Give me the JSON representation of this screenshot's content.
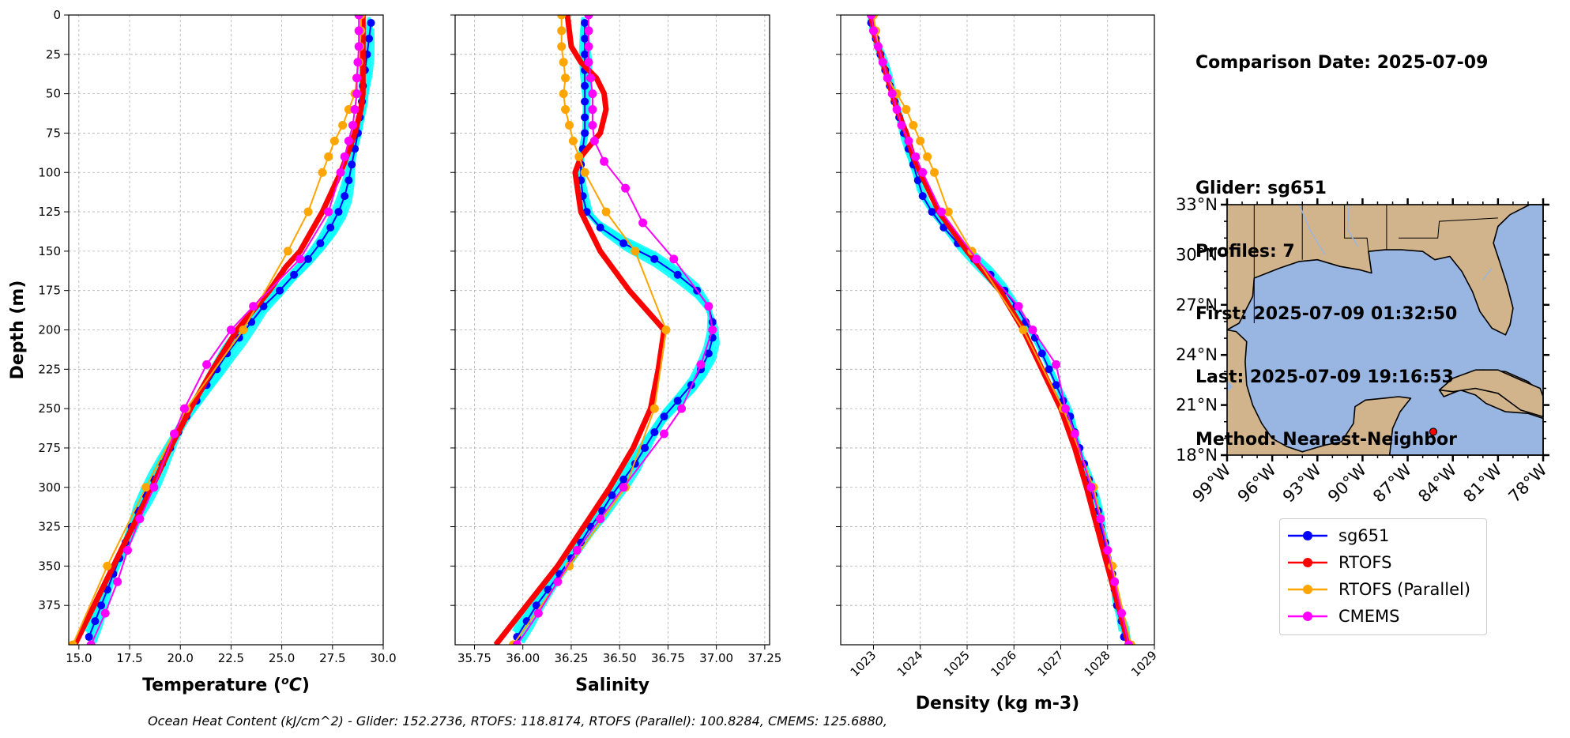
{
  "info": {
    "comparison_date": "Comparison Date: 2025-07-09",
    "glider": "Glider: sg651",
    "profiles": "Profiles: 7",
    "first": "First: 2025-07-09 01:32:50",
    "last": "Last: 2025-07-09 19:16:53",
    "method": "Method: Nearest-Neighbor"
  },
  "footer_text": "Ocean Heat Content (kJ/cm^2) - Glider: 152.2736,  RTOFS: 118.8174,  RTOFS (Parallel): 100.8284,  CMEMS: 125.6880,",
  "legend": [
    {
      "name": "sg651",
      "color": "#0000ff"
    },
    {
      "name": "RTOFS",
      "color": "#ff0000"
    },
    {
      "name": "RTOFS (Parallel)",
      "color": "#ffa500"
    },
    {
      "name": "CMEMS",
      "color": "#ff00ff"
    }
  ],
  "map": {
    "lat_ticks": [
      "33°N",
      "30°N",
      "27°N",
      "24°N",
      "21°N",
      "18°N"
    ],
    "lon_ticks": [
      "99°W",
      "96°W",
      "93°W",
      "90°W",
      "87°W",
      "84°W",
      "81°W",
      "78°W"
    ],
    "glider_position": {
      "lon": -85.3,
      "lat": 19.4
    },
    "colors": {
      "land": "#d2b48c",
      "ocean": "#98b6e1"
    }
  },
  "chart_data": [
    {
      "type": "line",
      "xlabel": "Temperature (°C)",
      "ylabel": "Depth (m)",
      "xlim": [
        14.5,
        30.0
      ],
      "ylim": [
        400,
        0
      ],
      "xticks": [
        "15.0",
        "17.5",
        "20.0",
        "22.5",
        "25.0",
        "27.5",
        "30.0"
      ],
      "yticks": [
        "0",
        "25",
        "50",
        "75",
        "100",
        "125",
        "150",
        "175",
        "200",
        "225",
        "250",
        "275",
        "300",
        "325",
        "350",
        "375"
      ],
      "grid": true,
      "series": [
        {
          "name": "sg651",
          "color": "#0000ff",
          "depth": [
            5,
            15,
            25,
            35,
            45,
            55,
            65,
            75,
            85,
            95,
            105,
            115,
            125,
            135,
            145,
            155,
            165,
            175,
            185,
            195,
            205,
            215,
            225,
            235,
            245,
            255,
            265,
            275,
            285,
            295,
            305,
            315,
            325,
            335,
            345,
            355,
            365,
            375,
            385,
            395
          ],
          "values": [
            29.4,
            29.3,
            29.2,
            29.1,
            29.0,
            28.95,
            28.85,
            28.75,
            28.6,
            28.45,
            28.3,
            28.1,
            27.8,
            27.4,
            26.9,
            26.3,
            25.6,
            24.9,
            24.1,
            23.5,
            22.9,
            22.3,
            21.8,
            21.3,
            20.8,
            20.3,
            19.9,
            19.5,
            19.1,
            18.7,
            18.3,
            17.9,
            17.6,
            17.3,
            17.0,
            16.7,
            16.4,
            16.1,
            15.8,
            15.5
          ]
        },
        {
          "name": "RTOFS",
          "color": "#ff0000",
          "depth": [
            0,
            10,
            20,
            30,
            50,
            60,
            75,
            90,
            100,
            125,
            150,
            160,
            175,
            200,
            225,
            250,
            275,
            300,
            350,
            400
          ],
          "values": [
            29.0,
            29.0,
            29.0,
            29.0,
            29.0,
            28.9,
            28.6,
            28.2,
            27.9,
            27.0,
            25.9,
            25.2,
            24.4,
            22.8,
            21.6,
            20.5,
            19.5,
            18.6,
            16.7,
            14.8
          ]
        },
        {
          "name": "RTOFS (Parallel)",
          "color": "#ffa500",
          "depth": [
            0,
            10,
            20,
            30,
            40,
            50,
            60,
            70,
            80,
            90,
            100,
            125,
            150,
            200,
            250,
            300,
            350,
            400
          ],
          "values": [
            28.9,
            28.9,
            28.85,
            28.8,
            28.7,
            28.6,
            28.3,
            28.0,
            27.6,
            27.3,
            27.0,
            26.3,
            25.3,
            23.1,
            20.3,
            18.3,
            16.4,
            14.7
          ]
        },
        {
          "name": "CMEMS",
          "color": "#ff00ff",
          "depth": [
            0,
            10,
            20,
            30,
            40,
            50,
            60,
            70,
            80,
            90,
            100,
            125,
            155,
            185,
            200,
            222,
            250,
            266,
            300,
            320,
            340,
            360,
            380,
            400
          ],
          "values": [
            28.8,
            28.8,
            28.8,
            28.75,
            28.7,
            28.7,
            28.6,
            28.5,
            28.3,
            28.1,
            27.9,
            27.3,
            25.9,
            23.6,
            22.5,
            21.3,
            20.2,
            19.7,
            18.7,
            18.0,
            17.4,
            16.9,
            16.3,
            15.6
          ]
        }
      ]
    },
    {
      "type": "line",
      "xlabel": "Salinity",
      "ylabel": "",
      "xlim": [
        35.65,
        37.275
      ],
      "ylim": [
        400,
        0
      ],
      "xticks": [
        "35.75",
        "36.00",
        "36.25",
        "36.50",
        "36.75",
        "37.00",
        "37.25"
      ],
      "grid": true,
      "series": [
        {
          "name": "sg651",
          "color": "#0000ff",
          "depth": [
            5,
            15,
            25,
            35,
            45,
            55,
            65,
            75,
            85,
            95,
            105,
            115,
            125,
            135,
            145,
            155,
            165,
            175,
            185,
            195,
            205,
            215,
            225,
            235,
            245,
            255,
            265,
            275,
            285,
            295,
            305,
            315,
            325,
            335,
            345,
            355,
            365,
            375,
            385,
            395
          ],
          "values": [
            36.32,
            36.32,
            36.32,
            36.32,
            36.32,
            36.32,
            36.32,
            36.32,
            36.31,
            36.3,
            36.3,
            36.31,
            36.33,
            36.4,
            36.52,
            36.68,
            36.8,
            36.9,
            36.96,
            36.98,
            36.98,
            36.96,
            36.92,
            36.87,
            36.8,
            36.73,
            36.68,
            36.63,
            36.58,
            36.52,
            36.46,
            36.41,
            36.35,
            36.3,
            36.25,
            36.19,
            36.13,
            36.07,
            36.02,
            35.97
          ]
        },
        {
          "name": "RTOFS",
          "color": "#ff0000",
          "depth": [
            0,
            10,
            20,
            30,
            40,
            50,
            60,
            75,
            90,
            100,
            125,
            150,
            175,
            200,
            225,
            250,
            275,
            300,
            350,
            400
          ],
          "values": [
            36.23,
            36.24,
            36.25,
            36.3,
            36.38,
            36.42,
            36.43,
            36.4,
            36.3,
            36.27,
            36.3,
            36.4,
            36.55,
            36.73,
            36.7,
            36.66,
            36.57,
            36.45,
            36.18,
            35.86
          ]
        },
        {
          "name": "RTOFS (Parallel)",
          "color": "#ffa500",
          "depth": [
            0,
            10,
            20,
            30,
            40,
            50,
            60,
            70,
            80,
            90,
            100,
            125,
            150,
            200,
            250,
            300,
            350,
            400
          ],
          "values": [
            36.2,
            36.2,
            36.2,
            36.21,
            36.22,
            36.21,
            36.22,
            36.24,
            36.26,
            36.29,
            36.32,
            36.43,
            36.58,
            36.74,
            36.68,
            36.53,
            36.24,
            35.95
          ]
        },
        {
          "name": "CMEMS",
          "color": "#ff00ff",
          "depth": [
            0,
            10,
            20,
            30,
            40,
            50,
            60,
            70,
            80,
            93,
            110,
            132,
            155,
            185,
            200,
            222,
            250,
            266,
            300,
            320,
            340,
            360,
            380,
            400
          ],
          "values": [
            36.34,
            36.34,
            36.34,
            36.34,
            36.35,
            36.36,
            36.36,
            36.36,
            36.37,
            36.42,
            36.53,
            36.62,
            36.78,
            36.96,
            36.98,
            36.92,
            36.82,
            36.73,
            36.52,
            36.4,
            36.28,
            36.18,
            36.08,
            35.97
          ]
        }
      ]
    },
    {
      "type": "line",
      "xlabel": "Density (kg m-3)",
      "ylabel": "",
      "xlim": [
        1022.3,
        1029.0
      ],
      "ylim": [
        400,
        0
      ],
      "xticks": [
        "1023",
        "1024",
        "1025",
        "1026",
        "1027",
        "1028",
        "1029"
      ],
      "grid": true,
      "series": [
        {
          "name": "sg651",
          "color": "#0000ff",
          "depth": [
            5,
            15,
            25,
            35,
            45,
            55,
            65,
            75,
            85,
            95,
            105,
            115,
            125,
            135,
            145,
            155,
            165,
            175,
            185,
            195,
            205,
            215,
            225,
            235,
            245,
            255,
            265,
            275,
            285,
            295,
            305,
            315,
            325,
            335,
            345,
            355,
            365,
            375,
            385,
            395
          ],
          "values": [
            1022.95,
            1023.05,
            1023.15,
            1023.25,
            1023.35,
            1023.45,
            1023.55,
            1023.65,
            1023.75,
            1023.85,
            1023.95,
            1024.05,
            1024.25,
            1024.5,
            1024.8,
            1025.15,
            1025.5,
            1025.8,
            1026.05,
            1026.25,
            1026.45,
            1026.6,
            1026.75,
            1026.9,
            1027.05,
            1027.2,
            1027.3,
            1027.4,
            1027.5,
            1027.6,
            1027.7,
            1027.8,
            1027.85,
            1027.95,
            1028.0,
            1028.1,
            1028.15,
            1028.2,
            1028.3,
            1028.35
          ]
        },
        {
          "name": "RTOFS",
          "color": "#ff0000",
          "depth": [
            0,
            10,
            20,
            30,
            40,
            50,
            60,
            75,
            90,
            100,
            125,
            150,
            175,
            200,
            225,
            250,
            275,
            300,
            350,
            400
          ],
          "values": [
            1022.95,
            1023.0,
            1023.1,
            1023.2,
            1023.3,
            1023.4,
            1023.5,
            1023.7,
            1023.85,
            1024.0,
            1024.4,
            1025.0,
            1025.7,
            1026.2,
            1026.6,
            1027.0,
            1027.3,
            1027.55,
            1028.0,
            1028.45
          ]
        },
        {
          "name": "RTOFS (Parallel)",
          "color": "#ffa500",
          "depth": [
            0,
            10,
            20,
            30,
            40,
            50,
            60,
            70,
            80,
            90,
            100,
            125,
            150,
            200,
            250,
            300,
            350,
            400
          ],
          "values": [
            1023.0,
            1023.05,
            1023.1,
            1023.2,
            1023.3,
            1023.5,
            1023.7,
            1023.85,
            1024.0,
            1024.15,
            1024.3,
            1024.6,
            1025.1,
            1026.2,
            1027.05,
            1027.7,
            1028.1,
            1028.5
          ]
        },
        {
          "name": "CMEMS",
          "color": "#ff00ff",
          "depth": [
            0,
            10,
            20,
            30,
            40,
            50,
            60,
            70,
            80,
            90,
            100,
            125,
            155,
            185,
            200,
            222,
            250,
            266,
            300,
            320,
            340,
            360,
            380,
            400
          ],
          "values": [
            1022.95,
            1023.0,
            1023.1,
            1023.2,
            1023.3,
            1023.4,
            1023.5,
            1023.6,
            1023.75,
            1023.9,
            1024.05,
            1024.45,
            1025.2,
            1026.1,
            1026.4,
            1026.9,
            1027.1,
            1027.3,
            1027.65,
            1027.85,
            1028.0,
            1028.15,
            1028.3,
            1028.45
          ]
        }
      ]
    }
  ]
}
